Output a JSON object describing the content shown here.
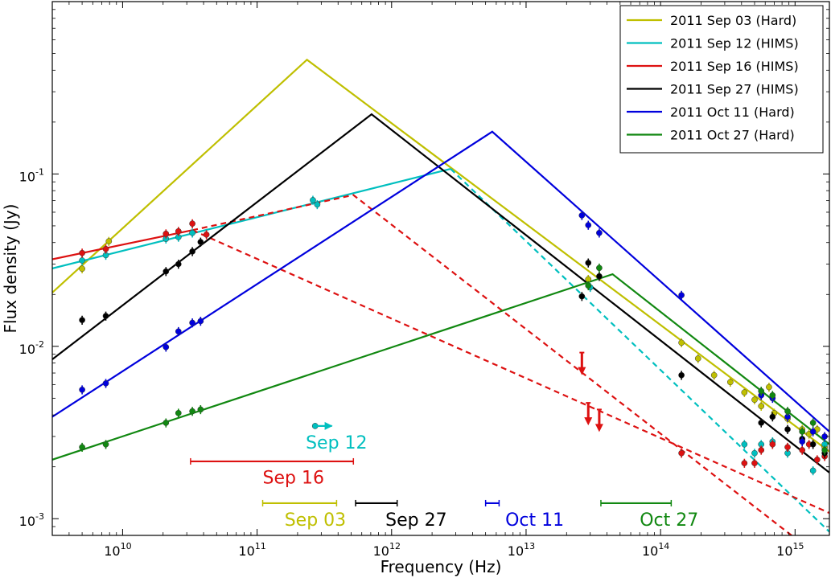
{
  "chart_data": {
    "type": "line",
    "xlabel": "Frequency (Hz)",
    "ylabel": "Flux density (Jy)",
    "xscale": "log",
    "yscale": "log",
    "xlim": [
      3000000000.0,
      1800000000000000.0
    ],
    "ylim": [
      0.0008,
      1.0
    ],
    "x_ticks": [
      {
        "value": 10000000000.0,
        "base": "10",
        "exp": "10"
      },
      {
        "value": 100000000000.0,
        "base": "10",
        "exp": "11"
      },
      {
        "value": 1000000000000.0,
        "base": "10",
        "exp": "12"
      },
      {
        "value": 10000000000000.0,
        "base": "10",
        "exp": "13"
      },
      {
        "value": 100000000000000.0,
        "base": "10",
        "exp": "14"
      },
      {
        "value": 1000000000000000.0,
        "base": "10",
        "exp": "15"
      }
    ],
    "y_ticks": [
      {
        "value": 0.001,
        "base": "10",
        "exp": "-3"
      },
      {
        "value": 0.01,
        "base": "10",
        "exp": "-2"
      },
      {
        "value": 0.1,
        "base": "10",
        "exp": "-1"
      }
    ],
    "legend_position": "top-right",
    "series": [
      {
        "name": "2011 Sep 03 (Hard)",
        "color": "#bfbf00",
        "model": [
          [
            3000000000.0,
            0.0205
          ],
          [
            235000000000.0,
            0.46
          ],
          [
            1800000000000000.0,
            0.00245
          ]
        ],
        "points": [
          [
            5000000000.0,
            0.0282
          ],
          [
            7900000000.0,
            0.0407
          ],
          [
            29000000000000.0,
            0.0245
          ],
          [
            143000000000000.0,
            0.0105
          ],
          [
            190000000000000.0,
            0.0085
          ],
          [
            250000000000000.0,
            0.0068
          ],
          [
            330000000000000.0,
            0.0062
          ],
          [
            420000000000000.0,
            0.0054
          ],
          [
            500000000000000.0,
            0.0049
          ],
          [
            560000000000000.0,
            0.0045
          ],
          [
            640000000000000.0,
            0.0058
          ],
          [
            700000000000000.0,
            0.0041
          ],
          [
            880000000000000.0,
            0.0038
          ],
          [
            1130000000000000.0,
            0.0033
          ],
          [
            1270000000000000.0,
            0.0031
          ],
          [
            1460000000000000.0,
            0.0033
          ],
          [
            1660000000000000.0,
            0.0026
          ]
        ]
      },
      {
        "name": "2011 Sep 12 (HIMS)",
        "color": "#00bfbf",
        "model": [
          [
            3000000000.0,
            0.0283
          ],
          [
            2750000000000.0,
            0.107
          ]
        ],
        "model_dashed": [
          [
            2750000000000.0,
            0.107
          ],
          [
            1800000000000000.0,
            0.00084
          ]
        ],
        "points": [
          [
            5000000000.0,
            0.0315
          ],
          [
            7500000000.0,
            0.0338
          ],
          [
            21000000000.0,
            0.042
          ],
          [
            26000000000.0,
            0.043
          ],
          [
            33000000000.0,
            0.0455
          ],
          [
            260000000000.0,
            0.0705
          ],
          [
            280000000000.0,
            0.0665
          ],
          [
            30000000000000.0,
            0.022
          ],
          [
            420000000000000.0,
            0.0027
          ],
          [
            500000000000000.0,
            0.0024
          ],
          [
            560000000000000.0,
            0.0027
          ],
          [
            680000000000000.0,
            0.0028
          ],
          [
            880000000000000.0,
            0.0024
          ],
          [
            1130000000000000.0,
            0.0029
          ],
          [
            1360000000000000.0,
            0.0019
          ],
          [
            1660000000000000.0,
            0.0027
          ]
        ],
        "limit": {
          "x": 270000000000.0,
          "y": 0.00345
        }
      },
      {
        "name": "2011 Sep 16 (HIMS)",
        "color": "#dd1111",
        "model": [
          [
            3000000000.0,
            0.032
          ],
          [
            33000000000.0,
            0.0472
          ]
        ],
        "model_dashed_a": [
          [
            33000000000.0,
            0.0472
          ],
          [
            520000000000.0,
            0.0755
          ],
          [
            1800000000000000.0,
            0.00054
          ]
        ],
        "model_dashed_b": [
          [
            33000000000.0,
            0.0472
          ],
          [
            1800000000000000.0,
            0.00108
          ]
        ],
        "points": [
          [
            5000000000.0,
            0.0348
          ],
          [
            7500000000.0,
            0.0367
          ],
          [
            21000000000.0,
            0.045
          ],
          [
            26000000000.0,
            0.0465
          ],
          [
            33000000000.0,
            0.0515
          ],
          [
            42000000000.0,
            0.0445
          ],
          [
            143000000000000.0,
            0.0024
          ],
          [
            420000000000000.0,
            0.0021
          ],
          [
            500000000000000.0,
            0.0021
          ],
          [
            560000000000000.0,
            0.0025
          ],
          [
            680000000000000.0,
            0.0027
          ],
          [
            880000000000000.0,
            0.0026
          ],
          [
            1130000000000000.0,
            0.0025
          ],
          [
            1270000000000000.0,
            0.0027
          ],
          [
            1460000000000000.0,
            0.0022
          ],
          [
            1660000000000000.0,
            0.0023
          ]
        ],
        "upper_limits": [
          [
            26000000000000.0,
            0.0092
          ],
          [
            29000000000000.0,
            0.0047
          ],
          [
            35000000000000.0,
            0.0043
          ]
        ]
      },
      {
        "name": "2011 Sep 27 (HIMS)",
        "color": "#000000",
        "model": [
          [
            3000000000.0,
            0.0084
          ],
          [
            710000000000.0,
            0.222
          ],
          [
            1800000000000000.0,
            0.00185
          ]
        ],
        "points": [
          [
            5000000000.0,
            0.0142
          ],
          [
            7500000000.0,
            0.015
          ],
          [
            21000000000.0,
            0.0272
          ],
          [
            26000000000.0,
            0.03
          ],
          [
            33000000000.0,
            0.0355
          ],
          [
            38000000000.0,
            0.0403
          ],
          [
            26000000000000.0,
            0.0195
          ],
          [
            29000000000000.0,
            0.0305
          ],
          [
            35000000000000.0,
            0.0255
          ],
          [
            143000000000000.0,
            0.0068
          ],
          [
            560000000000000.0,
            0.0036
          ],
          [
            680000000000000.0,
            0.0039
          ],
          [
            880000000000000.0,
            0.0033
          ],
          [
            1130000000000000.0,
            0.0029
          ],
          [
            1360000000000000.0,
            0.0027
          ],
          [
            1660000000000000.0,
            0.0024
          ]
        ]
      },
      {
        "name": "2011 Oct 11 (Hard)",
        "color": "#0000dd",
        "model": [
          [
            3000000000.0,
            0.0039
          ],
          [
            5600000000000.0,
            0.176
          ],
          [
            1800000000000000.0,
            0.0032
          ]
        ],
        "points": [
          [
            5000000000.0,
            0.0056
          ],
          [
            7500000000.0,
            0.0061
          ],
          [
            21000000000.0,
            0.0099
          ],
          [
            26000000000.0,
            0.0122
          ],
          [
            33000000000.0,
            0.0137
          ],
          [
            38000000000.0,
            0.014
          ],
          [
            26000000000000.0,
            0.0575
          ],
          [
            29000000000000.0,
            0.0505
          ],
          [
            35000000000000.0,
            0.0455
          ],
          [
            143000000000000.0,
            0.0198
          ],
          [
            560000000000000.0,
            0.0052
          ],
          [
            680000000000000.0,
            0.005
          ],
          [
            880000000000000.0,
            0.0039
          ],
          [
            1130000000000000.0,
            0.0028
          ],
          [
            1360000000000000.0,
            0.0032
          ],
          [
            1660000000000000.0,
            0.003
          ]
        ]
      },
      {
        "name": "2011 Oct 27 (Hard)",
        "color": "#118811",
        "model": [
          [
            3000000000.0,
            0.0022
          ],
          [
            44000000000000.0,
            0.0262
          ],
          [
            1800000000000000.0,
            0.0027
          ]
        ],
        "points": [
          [
            5000000000.0,
            0.0026
          ],
          [
            7500000000.0,
            0.0027
          ],
          [
            21000000000.0,
            0.0036
          ],
          [
            26000000000.0,
            0.0041
          ],
          [
            33000000000.0,
            0.0042
          ],
          [
            38000000000.0,
            0.0043
          ],
          [
            29000000000000.0,
            0.0225
          ],
          [
            35000000000000.0,
            0.0285
          ],
          [
            560000000000000.0,
            0.0055
          ],
          [
            680000000000000.0,
            0.0052
          ],
          [
            880000000000000.0,
            0.0042
          ],
          [
            1130000000000000.0,
            0.0032
          ],
          [
            1360000000000000.0,
            0.0036
          ],
          [
            1660000000000000.0,
            0.0025
          ]
        ]
      }
    ],
    "annotations": [
      {
        "text": "Sep 12",
        "color": "#00bfbf",
        "x": 230000000000.0,
        "y": 0.00255,
        "line_xlim": [
          270000000000.0,
          360000000000.0
        ],
        "line_y": 0.00345,
        "arrow": true
      },
      {
        "text": "Sep 16",
        "color": "#dd1111",
        "x": 110000000000.0,
        "y": 0.0016,
        "line_xlim": [
          32000000000.0,
          520000000000.0
        ],
        "line_y": 0.00215
      },
      {
        "text": "Sep 03",
        "color": "#bfbf00",
        "x": 160000000000.0,
        "y": 0.00091,
        "line_xlim": [
          110000000000.0,
          390000000000.0
        ],
        "line_y": 0.00123
      },
      {
        "text": "Sep 27",
        "color": "#000000",
        "x": 900000000000.0,
        "y": 0.00091,
        "line_xlim": [
          540000000000.0,
          1100000000000.0
        ],
        "line_y": 0.00123
      },
      {
        "text": "Oct 11",
        "color": "#0000dd",
        "x": 7000000000000.0,
        "y": 0.00091,
        "line_xlim": [
          5000000000000.0,
          6300000000000.0
        ],
        "line_y": 0.00123
      },
      {
        "text": "Oct 27",
        "color": "#118811",
        "x": 70000000000000.0,
        "y": 0.00091,
        "line_xlim": [
          36000000000000.0,
          120000000000000.0
        ],
        "line_y": 0.00123
      }
    ]
  }
}
